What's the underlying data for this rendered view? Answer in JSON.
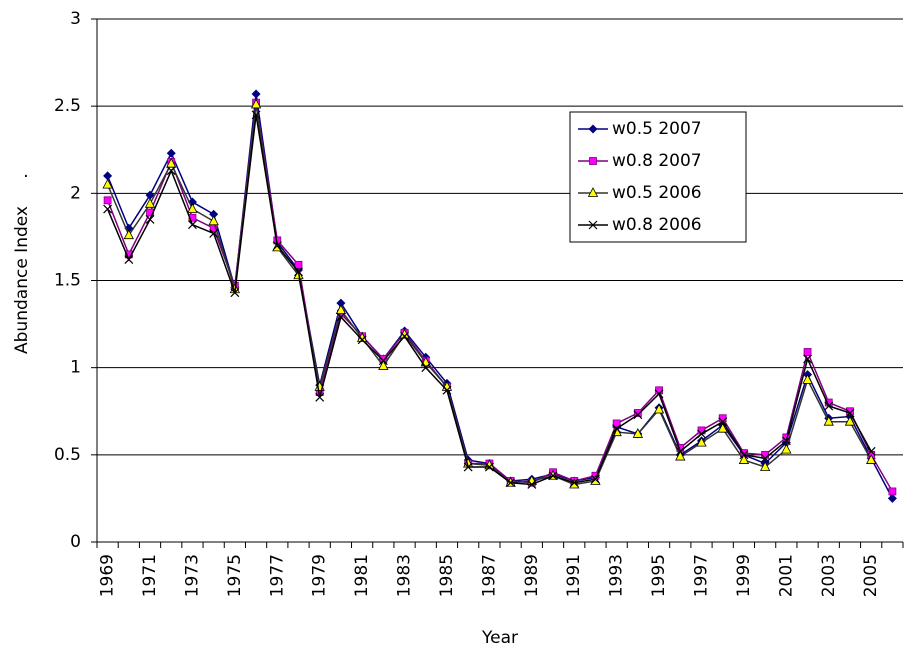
{
  "chart_data": {
    "type": "line",
    "y_label": "Abundance Index",
    "y_label_note": ".",
    "x_label": "Year",
    "categories": [
      "1969",
      null,
      "1971",
      null,
      "1973",
      null,
      "1975",
      null,
      "1977",
      null,
      "1979",
      null,
      "1981",
      null,
      "1983",
      null,
      "1985",
      null,
      "1987",
      null,
      "1989",
      null,
      "1991",
      null,
      "1993",
      null,
      "1995",
      null,
      "1997",
      null,
      "1999",
      null,
      "2001",
      null,
      "2003",
      null,
      "2005",
      null
    ],
    "series": [
      {
        "name": "w0.5 2007",
        "color": "#000080",
        "marker_color": "#000080",
        "marker": "diamond",
        "values": [
          2.1,
          1.8,
          1.99,
          2.23,
          1.95,
          1.88,
          1.46,
          2.57,
          1.72,
          1.56,
          0.9,
          1.37,
          1.18,
          1.05,
          1.21,
          1.06,
          0.91,
          0.47,
          0.45,
          0.35,
          0.36,
          0.39,
          0.35,
          0.37,
          0.66,
          0.62,
          0.77,
          0.5,
          0.58,
          0.67,
          0.5,
          0.45,
          0.57,
          0.96,
          0.71,
          0.72,
          0.48,
          0.25
        ]
      },
      {
        "name": "w0.8 2007",
        "color": "#800080",
        "marker_color": "#ff00ff",
        "marker": "square",
        "values": [
          1.96,
          1.65,
          1.89,
          2.18,
          1.86,
          1.8,
          1.47,
          2.52,
          1.73,
          1.59,
          0.86,
          1.31,
          1.18,
          1.05,
          1.2,
          1.04,
          0.89,
          0.45,
          0.45,
          0.35,
          0.34,
          0.4,
          0.35,
          0.38,
          0.68,
          0.74,
          0.87,
          0.54,
          0.64,
          0.71,
          0.51,
          0.5,
          0.6,
          1.09,
          0.8,
          0.75,
          0.5,
          0.29
        ]
      },
      {
        "name": "w0.5 2006",
        "color": "#333333",
        "marker_color": "#ffff00",
        "marker": "triangle",
        "values": [
          2.05,
          1.76,
          1.94,
          2.17,
          1.91,
          1.84,
          1.45,
          2.51,
          1.69,
          1.53,
          0.89,
          1.33,
          1.17,
          1.01,
          1.19,
          1.03,
          0.89,
          0.45,
          0.44,
          0.34,
          0.35,
          0.38,
          0.33,
          0.35,
          0.63,
          0.62,
          0.76,
          0.49,
          0.57,
          0.65,
          0.47,
          0.43,
          0.53,
          0.93,
          0.69,
          0.69,
          0.47,
          null
        ]
      },
      {
        "name": "w0.8 2006",
        "color": "#000000",
        "marker_color": "#000000",
        "marker": "x",
        "values": [
          1.91,
          1.62,
          1.85,
          2.13,
          1.82,
          1.77,
          1.43,
          2.45,
          1.7,
          1.55,
          0.83,
          1.29,
          1.16,
          1.04,
          1.18,
          1.0,
          0.87,
          0.43,
          0.43,
          0.34,
          0.33,
          0.38,
          0.34,
          0.36,
          0.65,
          0.73,
          0.85,
          0.52,
          0.62,
          0.69,
          0.5,
          0.48,
          0.58,
          1.05,
          0.78,
          0.74,
          0.52,
          null
        ]
      }
    ],
    "ylim": [
      0,
      3
    ],
    "yticks": [
      0,
      0.5,
      1,
      1.5,
      2,
      2.5,
      3
    ],
    "grid": true
  }
}
